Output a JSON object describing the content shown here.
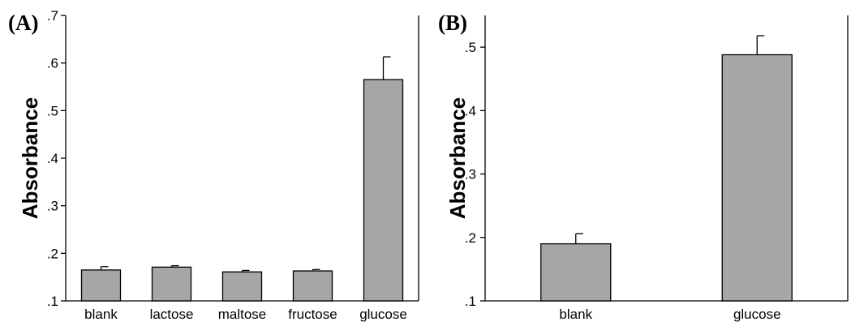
{
  "chart_data": [
    {
      "panel": "(A)",
      "type": "bar",
      "ylabel": "Absorbance",
      "xlabel": "",
      "ylim": [
        0.1,
        0.7
      ],
      "yticks": [
        ".1",
        ".2",
        ".3",
        ".4",
        ".5",
        ".6",
        ".7"
      ],
      "categories": [
        "blank",
        "lactose",
        "maltose",
        "fructose",
        "glucose"
      ],
      "values": [
        0.165,
        0.171,
        0.161,
        0.163,
        0.565
      ],
      "errors": [
        0.007,
        0.003,
        0.003,
        0.003,
        0.048
      ],
      "grid": false,
      "bar_color": "#a6a6a6"
    },
    {
      "panel": "(B)",
      "type": "bar",
      "ylabel": "Absorbance",
      "xlabel": "",
      "ylim": [
        0.1,
        0.55
      ],
      "yticks": [
        ".1",
        ".2",
        ".3",
        ".4",
        ".5"
      ],
      "categories": [
        "blank",
        "glucose"
      ],
      "values": [
        0.19,
        0.488
      ],
      "errors": [
        0.016,
        0.03
      ],
      "grid": false,
      "bar_color": "#a6a6a6"
    }
  ]
}
